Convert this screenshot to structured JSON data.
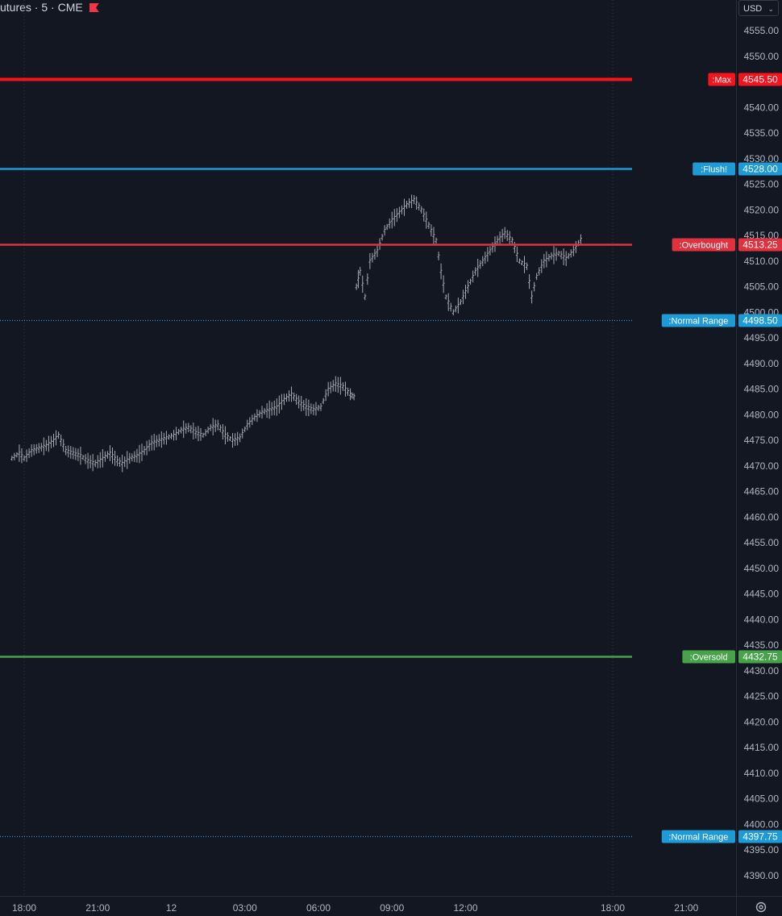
{
  "header": {
    "title": "utures · 5 · CME",
    "currency": "USD"
  },
  "colors": {
    "background": "#131722",
    "text": "#d1d4dc",
    "bars": "#a6a9b1",
    "grid": "#2a2e39",
    "max": "#f7131c",
    "flush": "#1e9ad6",
    "overbought": "#e0313f",
    "normal_range": "#1e9ad6",
    "oversold": "#47a34a"
  },
  "chart_data": {
    "type": "line",
    "title": "",
    "xlabel": "",
    "ylabel": "",
    "ylim": [
      4386,
      4559
    ],
    "x_ticks": [
      "18:00",
      "21:00",
      "12",
      "03:00",
      "06:00",
      "09:00",
      "12:00",
      "18:00",
      "21:00"
    ],
    "y_ticks": [
      "4555.00",
      "4550.00",
      "4545.00",
      "4540.00",
      "4535.00",
      "4530.00",
      "4525.00",
      "4520.00",
      "4515.00",
      "4510.00",
      "4505.00",
      "4500.00",
      "4495.00",
      "4490.00",
      "4485.00",
      "4480.00",
      "4475.00",
      "4470.00",
      "4465.00",
      "4460.00",
      "4455.00",
      "4450.00",
      "4445.00",
      "4440.00",
      "4435.00",
      "4430.00",
      "4425.00",
      "4420.00",
      "4415.00",
      "4410.00",
      "4405.00",
      "4400.00",
      "4395.00",
      "4390.00"
    ],
    "levels": [
      {
        "label": ":Max",
        "price": "4545.50",
        "value": 4545.5,
        "color": "#f7131c",
        "style": "solid"
      },
      {
        "label": ":Flush!",
        "price": "4528.00",
        "value": 4528.0,
        "color": "#1e9ad6",
        "style": "solid"
      },
      {
        "label": ":Overbought",
        "price": "4513.25",
        "value": 4513.25,
        "color": "#e0313f",
        "style": "solid"
      },
      {
        "label": ":Normal Range",
        "price": "4498.50",
        "value": 4498.5,
        "color": "#1e9ad6",
        "style": "dotted"
      },
      {
        "label": ":Oversold",
        "price": "4432.75",
        "value": 4432.75,
        "color": "#47a34a",
        "style": "solid"
      },
      {
        "label": ":Normal Range",
        "price": "4397.75",
        "value": 4397.75,
        "color": "#1e9ad6",
        "style": "dotted"
      }
    ],
    "series": [
      {
        "values": [
          [
            17.5,
            4471.5
          ],
          [
            17.8,
            4472.5
          ],
          [
            18.0,
            4471.5
          ],
          [
            18.3,
            4473.0
          ],
          [
            18.6,
            4473.5
          ],
          [
            18.9,
            4474.0
          ],
          [
            19.2,
            4475.0
          ],
          [
            19.4,
            4476.0
          ],
          [
            19.7,
            4473.0
          ],
          [
            20.0,
            4472.5
          ],
          [
            20.3,
            4472.0
          ],
          [
            20.6,
            4471.0
          ],
          [
            20.9,
            4470.5
          ],
          [
            21.2,
            4471.5
          ],
          [
            21.5,
            4472.5
          ],
          [
            21.8,
            4471.0
          ],
          [
            22.0,
            4470.5
          ],
          [
            22.3,
            4471.5
          ],
          [
            22.6,
            4472.0
          ],
          [
            22.9,
            4473.0
          ],
          [
            23.2,
            4474.5
          ],
          [
            23.5,
            4475.0
          ],
          [
            23.8,
            4475.5
          ],
          [
            24.1,
            4476.0
          ],
          [
            24.4,
            4477.0
          ],
          [
            24.7,
            4477.5
          ],
          [
            25.0,
            4476.5
          ],
          [
            25.3,
            4476.0
          ],
          [
            25.6,
            4477.5
          ],
          [
            25.9,
            4478.0
          ],
          [
            26.2,
            4476.0
          ],
          [
            26.5,
            4475.0
          ],
          [
            26.8,
            4475.5
          ],
          [
            27.1,
            4478.0
          ],
          [
            27.4,
            4479.5
          ],
          [
            27.7,
            4480.5
          ],
          [
            28.0,
            4481.0
          ],
          [
            28.3,
            4481.5
          ],
          [
            28.6,
            4483.0
          ],
          [
            28.9,
            4484.0
          ],
          [
            29.2,
            4482.5
          ],
          [
            29.5,
            4481.5
          ],
          [
            29.8,
            4481.0
          ],
          [
            30.1,
            4481.5
          ],
          [
            30.4,
            4485.0
          ],
          [
            30.7,
            4486.0
          ],
          [
            31.0,
            4485.5
          ],
          [
            31.3,
            4484.0
          ],
          [
            31.45,
            4483.5
          ],
          [
            31.55,
            4505.0
          ],
          [
            31.7,
            4508.0
          ],
          [
            31.9,
            4503.0
          ],
          [
            32.1,
            4510.0
          ],
          [
            32.4,
            4512.0
          ],
          [
            32.7,
            4516.0
          ],
          [
            33.0,
            4518.0
          ],
          [
            33.3,
            4519.5
          ],
          [
            33.6,
            4521.0
          ],
          [
            33.9,
            4522.0
          ],
          [
            34.2,
            4520.0
          ],
          [
            34.5,
            4517.0
          ],
          [
            34.8,
            4514.0
          ],
          [
            35.0,
            4508.0
          ],
          [
            35.2,
            4503.0
          ],
          [
            35.5,
            4500.0
          ],
          [
            35.8,
            4502.0
          ],
          [
            36.1,
            4505.0
          ],
          [
            36.4,
            4508.0
          ],
          [
            36.7,
            4510.0
          ],
          [
            37.0,
            4512.0
          ],
          [
            37.3,
            4514.0
          ],
          [
            37.6,
            4515.5
          ],
          [
            37.9,
            4514.0
          ],
          [
            38.2,
            4510.0
          ],
          [
            38.5,
            4509.0
          ],
          [
            38.7,
            4503.0
          ],
          [
            38.9,
            4507.0
          ],
          [
            39.2,
            4510.0
          ],
          [
            39.5,
            4511.0
          ],
          [
            39.8,
            4511.5
          ],
          [
            40.1,
            4510.5
          ],
          [
            40.4,
            4512.0
          ],
          [
            40.6,
            4513.5
          ],
          [
            40.8,
            4515.0
          ]
        ]
      }
    ]
  }
}
